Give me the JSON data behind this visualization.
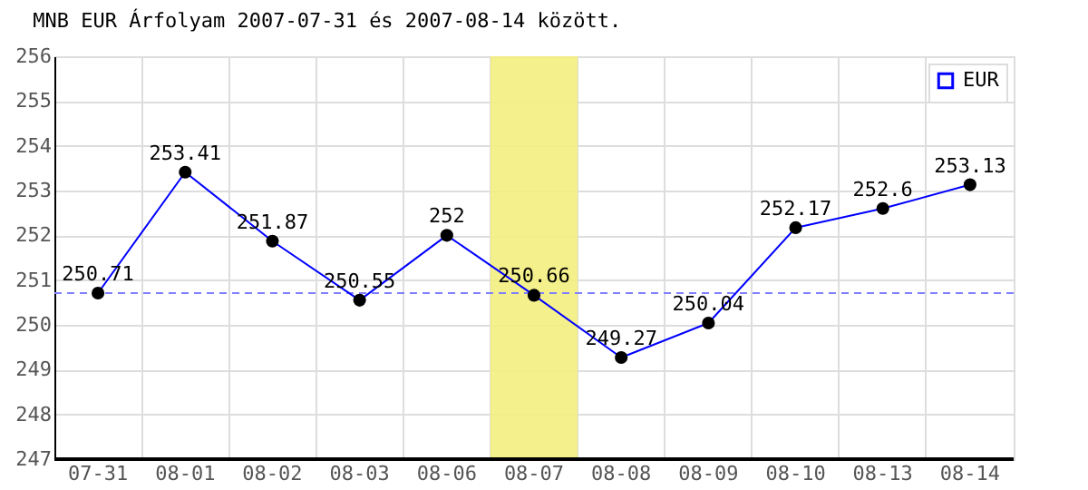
{
  "chart_data": {
    "type": "line",
    "title": "MNB EUR Árfolyam 2007-07-31 és 2007-08-14 között.",
    "categories": [
      "07-31",
      "08-01",
      "08-02",
      "08-03",
      "08-06",
      "08-07",
      "08-08",
      "08-09",
      "08-10",
      "08-13",
      "08-14"
    ],
    "series": [
      {
        "name": "EUR",
        "color": "#0000ff",
        "values": [
          250.71,
          253.41,
          251.87,
          250.55,
          252,
          250.66,
          249.27,
          250.04,
          252.17,
          252.6,
          253.13
        ]
      }
    ],
    "ylim": [
      247,
      256
    ],
    "yticks": [
      247,
      248,
      249,
      250,
      251,
      252,
      253,
      254,
      255,
      256
    ],
    "ref_lines": [
      {
        "axis": "y",
        "value": 250.71,
        "color": "#8080ff",
        "line_style": "dashed"
      }
    ],
    "bands": [
      {
        "axis": "x",
        "from": "08-07",
        "to": "08-07",
        "color": "#f3ee80"
      }
    ],
    "grid": true,
    "legend": "top right",
    "marker": "circle",
    "line_style": "solid",
    "data_labels": true
  }
}
